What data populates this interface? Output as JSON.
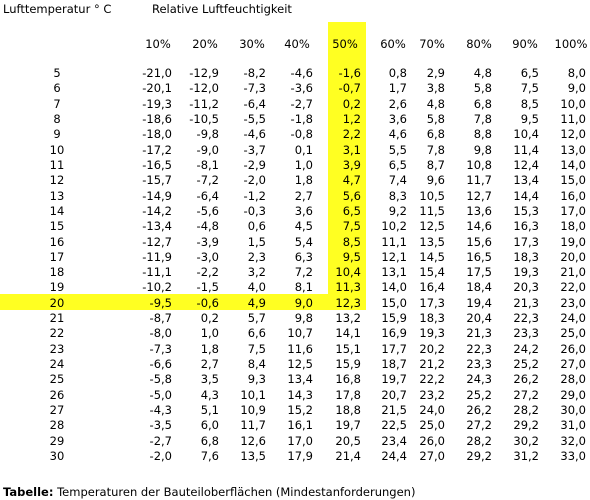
{
  "header": {
    "row_title": "Lufttemperatur ° C",
    "column_title": "Relative Luftfeuchtigkeit"
  },
  "table": {
    "columns": [
      "10%",
      "20%",
      "30%",
      "40%",
      "50%",
      "60%",
      "70%",
      "80%",
      "90%",
      "100%"
    ],
    "rows": [
      [
        "5",
        "-21,0",
        "-12,9",
        "-8,2",
        "-4,6",
        "-1,6",
        "0,8",
        "2,9",
        "4,8",
        "6,5",
        "8,0"
      ],
      [
        "6",
        "-20,1",
        "-12,0",
        "-7,3",
        "-3,6",
        "-0,7",
        "1,7",
        "3,8",
        "5,8",
        "7,5",
        "9,0"
      ],
      [
        "7",
        "-19,3",
        "-11,2",
        "-6,4",
        "-2,7",
        "0,2",
        "2,6",
        "4,8",
        "6,8",
        "8,5",
        "10,0"
      ],
      [
        "8",
        "-18,6",
        "-10,5",
        "-5,5",
        "-1,8",
        "1,2",
        "3,6",
        "5,8",
        "7,8",
        "9,5",
        "11,0"
      ],
      [
        "9",
        "-18,0",
        "-9,8",
        "-4,6",
        "-0,8",
        "2,2",
        "4,6",
        "6,8",
        "8,8",
        "10,4",
        "12,0"
      ],
      [
        "10",
        "-17,2",
        "-9,0",
        "-3,7",
        "0,1",
        "3,1",
        "5,5",
        "7,8",
        "9,8",
        "11,4",
        "13,0"
      ],
      [
        "11",
        "-16,5",
        "-8,1",
        "-2,9",
        "1,0",
        "3,9",
        "6,5",
        "8,7",
        "10,8",
        "12,4",
        "14,0"
      ],
      [
        "12",
        "-15,7",
        "-7,2",
        "-2,0",
        "1,8",
        "4,7",
        "7,4",
        "9,6",
        "11,7",
        "13,4",
        "15,0"
      ],
      [
        "13",
        "-14,9",
        "-6,4",
        "-1,2",
        "2,7",
        "5,6",
        "8,3",
        "10,5",
        "12,7",
        "14,4",
        "16,0"
      ],
      [
        "14",
        "-14,2",
        "-5,6",
        "-0,3",
        "3,6",
        "6,5",
        "9,2",
        "11,5",
        "13,6",
        "15,3",
        "17,0"
      ],
      [
        "15",
        "-13,4",
        "-4,8",
        "0,6",
        "4,5",
        "7,5",
        "10,2",
        "12,5",
        "14,6",
        "16,3",
        "18,0"
      ],
      [
        "16",
        "-12,7",
        "-3,9",
        "1,5",
        "5,4",
        "8,5",
        "11,1",
        "13,5",
        "15,6",
        "17,3",
        "19,0"
      ],
      [
        "17",
        "-11,9",
        "-3,0",
        "2,3",
        "6,3",
        "9,5",
        "12,1",
        "14,5",
        "16,5",
        "18,3",
        "20,0"
      ],
      [
        "18",
        "-11,1",
        "-2,2",
        "3,2",
        "7,2",
        "10,4",
        "13,1",
        "15,4",
        "17,5",
        "19,3",
        "21,0"
      ],
      [
        "19",
        "-10,2",
        "-1,5",
        "4,0",
        "8,1",
        "11,3",
        "14,0",
        "16,4",
        "18,4",
        "20,3",
        "22,0"
      ],
      [
        "20",
        "-9,5",
        "-0,6",
        "4,9",
        "9,0",
        "12,3",
        "15,0",
        "17,3",
        "19,4",
        "21,3",
        "23,0"
      ],
      [
        "21",
        "-8,7",
        "0,2",
        "5,7",
        "9,8",
        "13,2",
        "15,9",
        "18,3",
        "20,4",
        "22,3",
        "24,0"
      ],
      [
        "22",
        "-8,0",
        "1,0",
        "6,6",
        "10,7",
        "14,1",
        "16,9",
        "19,3",
        "21,3",
        "23,3",
        "25,0"
      ],
      [
        "23",
        "-7,3",
        "1,8",
        "7,5",
        "11,6",
        "15,1",
        "17,7",
        "20,2",
        "22,3",
        "24,2",
        "26,0"
      ],
      [
        "24",
        "-6,6",
        "2,7",
        "8,4",
        "12,5",
        "15,9",
        "18,7",
        "21,2",
        "23,3",
        "25,2",
        "27,0"
      ],
      [
        "25",
        "-5,8",
        "3,5",
        "9,3",
        "13,4",
        "16,8",
        "19,7",
        "22,2",
        "24,3",
        "26,2",
        "28,0"
      ],
      [
        "26",
        "-5,0",
        "4,3",
        "10,1",
        "14,3",
        "17,8",
        "20,7",
        "23,2",
        "25,2",
        "27,2",
        "29,0"
      ],
      [
        "27",
        "-4,3",
        "5,1",
        "10,9",
        "15,2",
        "18,8",
        "21,5",
        "24,0",
        "26,2",
        "28,2",
        "30,0"
      ],
      [
        "28",
        "-3,5",
        "6,0",
        "11,7",
        "16,1",
        "19,7",
        "22,5",
        "25,0",
        "27,2",
        "29,2",
        "31,0"
      ],
      [
        "29",
        "-2,7",
        "6,8",
        "12,6",
        "17,0",
        "20,5",
        "23,4",
        "26,0",
        "28,2",
        "30,2",
        "32,0"
      ],
      [
        "30",
        "-2,0",
        "7,6",
        "13,5",
        "17,9",
        "21,4",
        "24,4",
        "27,0",
        "29,2",
        "31,2",
        "33,0"
      ]
    ]
  },
  "caption": {
    "label": "Tabelle:",
    "text": "Temperaturen der Bauteiloberflächen (Mindestanforderungen)"
  }
}
